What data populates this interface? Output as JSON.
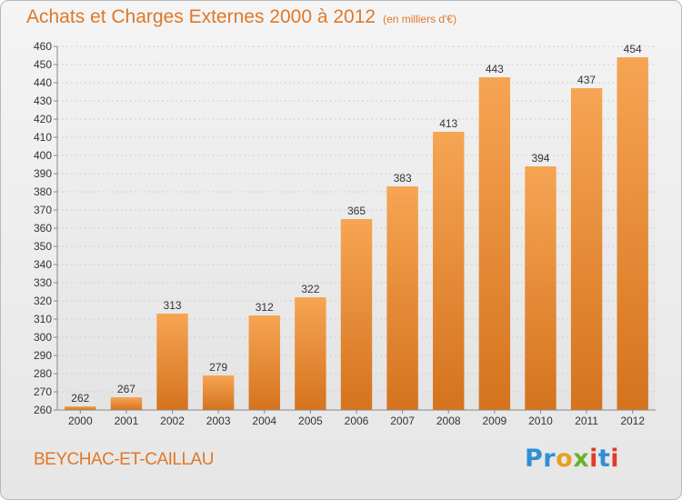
{
  "header": {
    "title": "Achats et Charges Externes 2000 à 2012",
    "subtitle": "(en milliers d'€)"
  },
  "footer": {
    "town": "BEYCHAC-ET-CAILLAU",
    "brand_letters": [
      {
        "char": "P",
        "color": "#2f8fd6"
      },
      {
        "char": "r",
        "color": "#2f8fd6"
      },
      {
        "char": "o",
        "color": "#e8a020"
      },
      {
        "char": "x",
        "color": "#6ab22e"
      },
      {
        "char": "i",
        "color": "#e23a2e"
      },
      {
        "char": "t",
        "color": "#2f8fd6"
      },
      {
        "char": "i",
        "color": "#e23a2e"
      }
    ]
  },
  "colors": {
    "accent": "#e07828",
    "bar_top": "#f6a553",
    "bar_bottom": "#d5731e"
  },
  "chart_data": {
    "type": "bar",
    "title": "Achats et Charges Externes 2000 à 2012",
    "subtitle": "(en milliers d'€)",
    "categories": [
      "2000",
      "2001",
      "2002",
      "2003",
      "2004",
      "2005",
      "2006",
      "2007",
      "2008",
      "2009",
      "2010",
      "2011",
      "2012"
    ],
    "values": [
      262,
      267,
      313,
      279,
      312,
      322,
      365,
      383,
      413,
      443,
      394,
      437,
      454
    ],
    "xlabel": "",
    "ylabel": "",
    "ylim": [
      260,
      460
    ],
    "ytick_step": 10,
    "grid": true
  }
}
